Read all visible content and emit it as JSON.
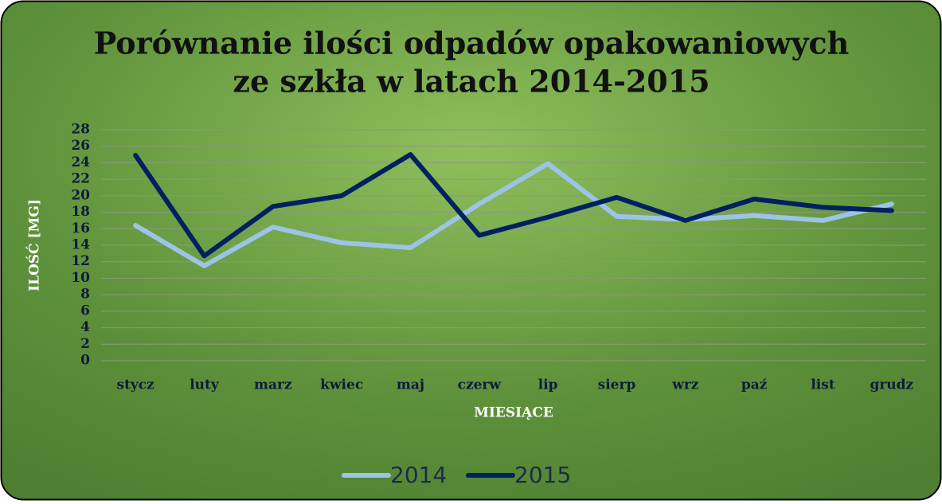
{
  "chart_data": {
    "type": "line",
    "title": [
      "Porównanie ilości odpadów opakowaniowych",
      "ze szkła w latach 2014-2015"
    ],
    "x_label": "MIESIĄCE",
    "y_label": "ILOŚĆ [MG]",
    "categories": [
      "stycz",
      "luty",
      "marz",
      "kwiec",
      "maj",
      "czerw",
      "lip",
      "sierp",
      "wrz",
      "paź",
      "list",
      "grudz"
    ],
    "series": [
      {
        "name": "2014",
        "color": "#9dc3e6",
        "values": [
          16.4,
          11.5,
          16.2,
          14.3,
          13.7,
          19,
          23.9,
          17.5,
          17.1,
          17.6,
          17,
          19
        ]
      },
      {
        "name": "2015",
        "color": "#002060",
        "values": [
          24.9,
          12.7,
          18.7,
          20,
          25,
          15.2,
          17.4,
          19.8,
          17,
          19.6,
          18.6,
          18.2
        ]
      }
    ],
    "ylim": [
      0,
      28
    ],
    "yticks": [
      0,
      2,
      4,
      6,
      8,
      10,
      12,
      14,
      16,
      18,
      20,
      22,
      24,
      26,
      28
    ],
    "grid": true,
    "legend": "bottom"
  }
}
